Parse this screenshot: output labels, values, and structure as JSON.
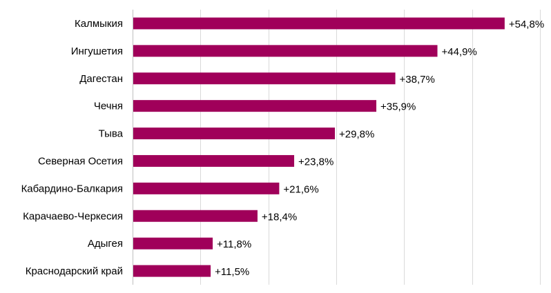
{
  "chart_data": {
    "type": "bar",
    "orientation": "horizontal",
    "categories": [
      "Калмыкия",
      "Ингушетия",
      "Дагестан",
      "Чечня",
      "Тыва",
      "Северная Осетия",
      "Кабардино-Балкария",
      "Карачаево-Черкесия",
      "Адыгея",
      "Краснодарский край"
    ],
    "values": [
      54.8,
      44.9,
      38.7,
      35.9,
      29.8,
      23.8,
      21.6,
      18.4,
      11.8,
      11.5
    ],
    "data_labels": [
      "+54,8%",
      "+44,9%",
      "+38,7%",
      "+35,9%",
      "+29,8%",
      "+23,8%",
      "+21,6%",
      "+18,4%",
      "+11,8%",
      "+11,5%"
    ],
    "xlim": [
      0,
      60
    ],
    "vertical_gridlines": true,
    "bar_color": "#a0005a",
    "gridline_color": "#d9d9d9",
    "axis_color": "#bfbfbf"
  }
}
